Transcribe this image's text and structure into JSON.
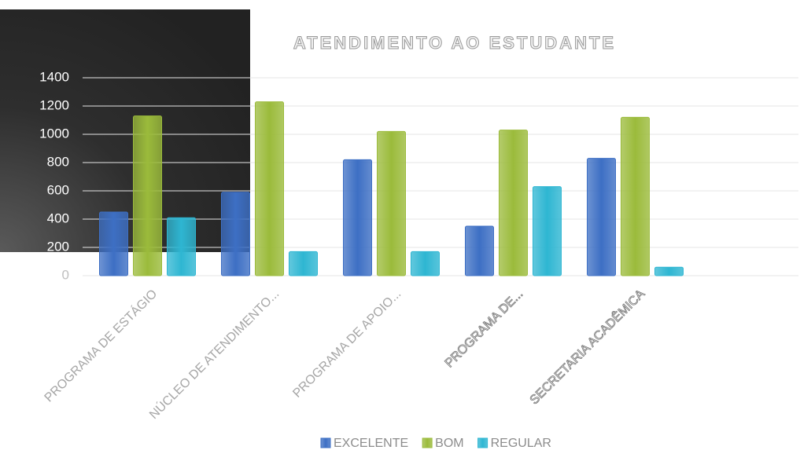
{
  "chart_data": {
    "type": "bar",
    "title": "ATENDIMENTO AO ESTUDANTE",
    "categories": [
      "PROGRAMA DE ESTÁGIO",
      "NÚCLEO DE ATENDIMENTO...",
      "PROGRAMA DE APOIO...",
      "PROGRAMA DE...",
      "SECRETARIA ACADÊMICA"
    ],
    "series": [
      {
        "name": "EXCELENTE",
        "color": "#3d6fc4",
        "values": [
          450,
          590,
          820,
          350,
          830
        ]
      },
      {
        "name": "BOM",
        "color": "#9bbb3b",
        "values": [
          1130,
          1230,
          1020,
          1030,
          1120
        ]
      },
      {
        "name": "REGULAR",
        "color": "#2eb6d2",
        "values": [
          410,
          170,
          170,
          630,
          60
        ]
      }
    ],
    "ylim": [
      0,
      1400
    ],
    "yticks": [
      0,
      200,
      400,
      600,
      800,
      1000,
      1200,
      1400
    ],
    "grid": true,
    "legend": "bottom"
  }
}
